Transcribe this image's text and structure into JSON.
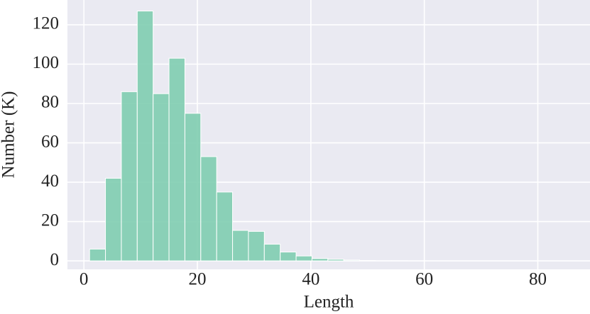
{
  "chart_data": {
    "type": "histogram",
    "x_label": "Length",
    "y_label": "Number (K)",
    "bins": [
      1,
      3.8,
      6.6,
      9.4,
      12.2,
      15,
      17.8,
      20.6,
      23.4,
      26.2,
      29,
      31.8,
      34.6,
      37.4,
      40.2,
      43,
      45.8,
      48.6,
      51.4,
      54.2,
      57,
      59.8,
      62.6,
      65.4,
      68.2,
      71,
      73.8,
      76.6,
      79.4,
      82.2,
      85
    ],
    "values": [
      6,
      42,
      86,
      127,
      85,
      103,
      75,
      53,
      35,
      15.5,
      15,
      8.5,
      4.5,
      2.5,
      1.2,
      0.8,
      0.4,
      0.2,
      0.1,
      0.1,
      0,
      0,
      0,
      0,
      0,
      0,
      0,
      0,
      0,
      0
    ],
    "color": "#7fcdb0",
    "xlim": [
      -2.9,
      89.2
    ],
    "ylim": [
      -4.3,
      132.6
    ],
    "xticks": [
      0,
      20,
      40,
      60,
      80
    ],
    "yticks": [
      0,
      20,
      40,
      60,
      80,
      100,
      120
    ],
    "grid": true
  }
}
